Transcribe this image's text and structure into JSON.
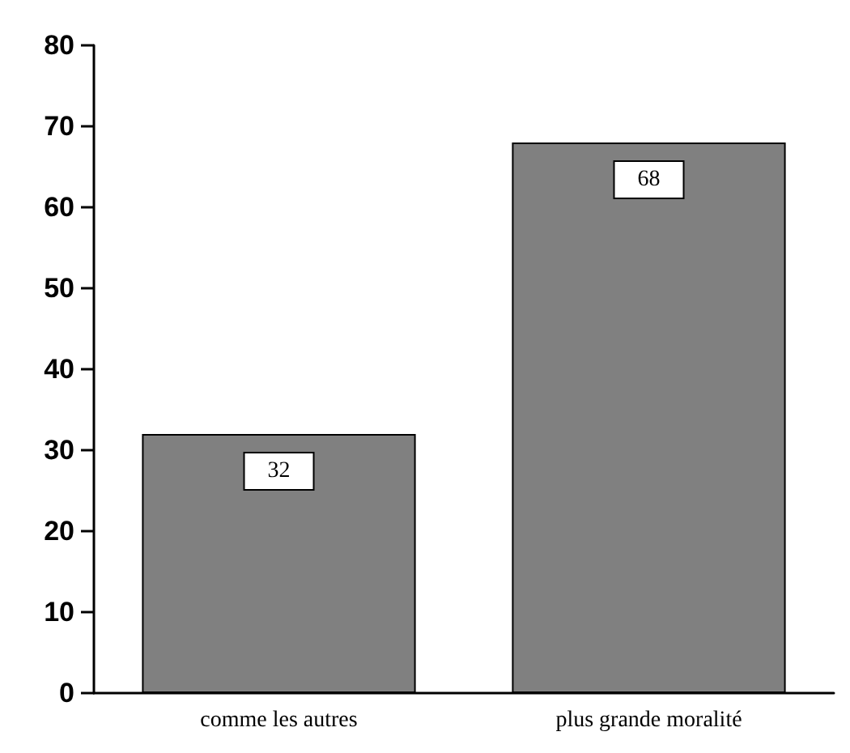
{
  "chart_data": {
    "type": "bar",
    "categories": [
      "comme les autres",
      "plus grande moralité"
    ],
    "values": [
      32,
      68
    ],
    "color": "#808080",
    "ylim": [
      0,
      80
    ],
    "yticks": [
      0,
      10,
      20,
      30,
      40,
      50,
      60,
      70,
      80
    ],
    "data_labels": true,
    "grid": false
  }
}
